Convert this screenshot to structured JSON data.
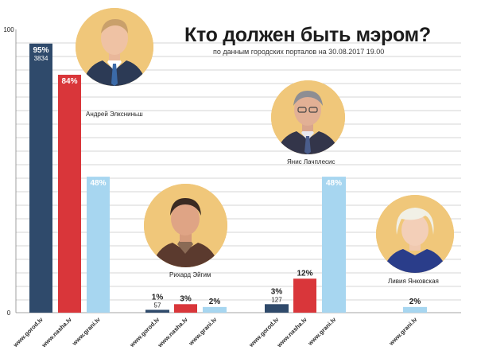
{
  "title": "Кто должен быть мэром?",
  "subtitle": "по данным городских порталов на 30.08.2017 19.00",
  "colors": {
    "gorod": "#2f4a6b",
    "nasha": "#d9363a",
    "grani": "#a7d6f0",
    "portrait_bg": "#f0c77a",
    "grid": "#c8c8c8"
  },
  "candidates": [
    {
      "name": "Андрей Элксниньш",
      "icon": "portrait-elksninsh"
    },
    {
      "name": "Рихард Эйгим",
      "icon": "portrait-eigim"
    },
    {
      "name": "Янис Лачплесис",
      "icon": "portrait-lachplesis"
    },
    {
      "name": "Ливия Янковская",
      "icon": "portrait-jankovskaya"
    }
  ],
  "chart_data": {
    "type": "bar",
    "title": "Кто должен быть мэром?",
    "subtitle": "по данным городских порталов на 30.08.2017 19.00",
    "ylim": [
      0,
      100
    ],
    "yticks": [
      "0",
      "100"
    ],
    "grid": true,
    "groups": [
      {
        "candidate": "Андрей Элксниньш",
        "bars": [
          {
            "portal": "www.gorod.lv",
            "series": "gorod",
            "value": 95,
            "label": "95%",
            "count": "3834"
          },
          {
            "portal": "www.nasha.lv",
            "series": "nasha",
            "value": 84,
            "label": "84%"
          },
          {
            "portal": "www.grani.lv",
            "series": "grani",
            "value": 48,
            "label": "48%"
          }
        ]
      },
      {
        "candidate": "Рихард Эйгим",
        "bars": [
          {
            "portal": "www.gorod.lv",
            "series": "gorod",
            "value": 1,
            "label": "1%",
            "count": "57"
          },
          {
            "portal": "www.nasha.lv",
            "series": "nasha",
            "value": 3,
            "label": "3%"
          },
          {
            "portal": "www.grani.lv",
            "series": "grani",
            "value": 2,
            "label": "2%"
          }
        ]
      },
      {
        "candidate": "Янис Лачплесис",
        "bars": [
          {
            "portal": "www.gorod.lv",
            "series": "gorod",
            "value": 3,
            "label": "3%",
            "count": "127"
          },
          {
            "portal": "www.nasha.lv",
            "series": "nasha",
            "value": 12,
            "label": "12%"
          },
          {
            "portal": "www.grani.lv",
            "series": "grani",
            "value": 48,
            "label": "48%"
          }
        ]
      },
      {
        "candidate": "Ливия Янковская",
        "bars": [
          {
            "portal": "www.grani.lv",
            "series": "grani",
            "value": 2,
            "label": "2%"
          }
        ]
      }
    ]
  }
}
